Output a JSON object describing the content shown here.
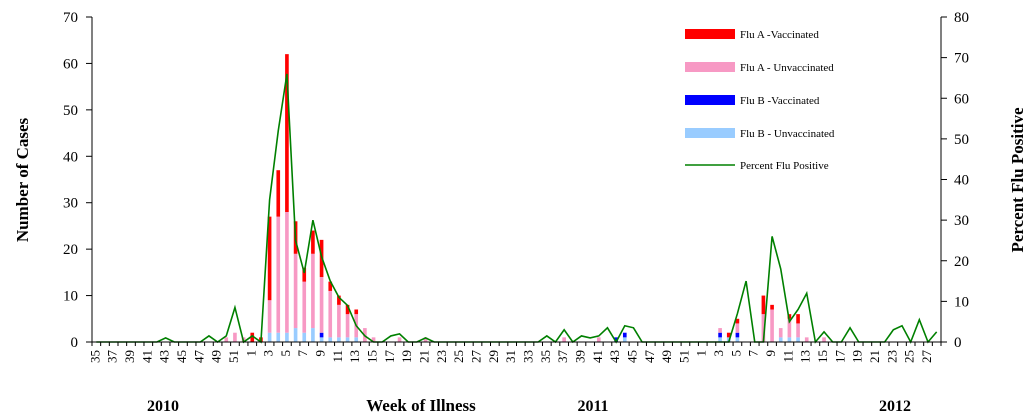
{
  "chart_data": {
    "type": "bar",
    "ylabel": "Number of Cases",
    "y2label": "Percent Flu Positive",
    "xlabel": "Week of Illness",
    "ylim": [
      0,
      70
    ],
    "y2lim": [
      0,
      80
    ],
    "yticks": [
      0,
      10,
      20,
      30,
      40,
      50,
      60,
      70
    ],
    "y2ticks": [
      0,
      10,
      20,
      30,
      40,
      50,
      60,
      70,
      80
    ],
    "years": [
      "2010",
      "2011",
      "2012"
    ],
    "weeks": [
      35,
      36,
      37,
      38,
      39,
      40,
      41,
      42,
      43,
      44,
      45,
      46,
      47,
      48,
      49,
      50,
      51,
      52,
      1,
      2,
      3,
      4,
      5,
      6,
      7,
      8,
      9,
      10,
      11,
      12,
      13,
      14,
      15,
      16,
      17,
      18,
      19,
      20,
      21,
      22,
      23,
      24,
      25,
      26,
      27,
      28,
      29,
      30,
      31,
      32,
      33,
      34,
      35,
      36,
      37,
      38,
      39,
      40,
      41,
      42,
      43,
      44,
      45,
      46,
      47,
      48,
      49,
      50,
      51,
      52,
      1,
      2,
      3,
      4,
      5,
      6,
      7,
      8,
      9,
      10,
      11,
      12,
      13,
      14,
      15,
      16,
      17,
      18,
      19,
      20,
      21,
      22,
      23,
      24,
      25,
      26,
      27,
      28
    ],
    "series": [
      {
        "name": "Flu A -Vaccinated",
        "color": "#ff0000",
        "kind": "bar",
        "values": [
          0,
          0,
          0,
          0,
          0,
          0,
          0,
          0,
          0,
          0,
          0,
          0,
          0,
          0,
          0,
          0,
          0,
          0,
          2,
          1,
          18,
          10,
          34,
          7,
          3,
          5,
          8,
          2,
          2,
          2,
          1,
          0,
          0,
          0,
          0,
          0,
          0,
          0,
          0,
          0,
          0,
          0,
          0,
          0,
          0,
          0,
          0,
          0,
          0,
          0,
          0,
          0,
          0,
          0,
          0,
          0,
          0,
          0,
          0,
          0,
          0,
          0,
          0,
          0,
          0,
          0,
          0,
          0,
          0,
          0,
          0,
          0,
          0,
          1,
          1,
          0,
          0,
          4,
          1,
          0,
          1,
          2,
          0,
          0,
          0,
          0,
          0,
          0,
          0,
          0,
          0,
          0,
          0,
          0,
          0,
          0,
          0,
          0
        ]
      },
      {
        "name": "Flu A - Unvaccinated",
        "color": "#f799c4",
        "kind": "bar",
        "values": [
          0,
          0,
          0,
          0,
          0,
          0,
          0,
          0,
          0,
          0,
          0,
          0,
          0,
          0,
          0,
          1,
          2,
          1,
          0,
          0,
          7,
          25,
          26,
          16,
          11,
          16,
          12,
          10,
          7,
          5,
          5,
          3,
          1,
          0,
          0,
          1,
          0,
          0,
          1,
          0,
          0,
          0,
          0,
          0,
          0,
          0,
          0,
          0,
          0,
          0,
          0,
          0,
          0,
          0,
          1,
          0,
          0,
          0,
          1,
          0,
          0,
          0,
          0,
          0,
          0,
          0,
          0,
          0,
          0,
          0,
          0,
          0,
          1,
          0,
          2,
          0,
          0,
          6,
          7,
          2,
          4,
          3,
          1,
          0,
          1,
          0,
          0,
          0,
          0,
          0,
          0,
          0,
          0,
          0,
          0,
          0,
          0,
          0
        ]
      },
      {
        "name": "Flu B -Vaccinated",
        "color": "#0000ff",
        "kind": "bar",
        "values": [
          0,
          0,
          0,
          0,
          0,
          0,
          0,
          0,
          0,
          0,
          0,
          0,
          0,
          0,
          0,
          0,
          0,
          0,
          0,
          0,
          0,
          0,
          0,
          0,
          0,
          0,
          1,
          0,
          0,
          0,
          0,
          0,
          0,
          0,
          0,
          0,
          0,
          0,
          0,
          0,
          0,
          0,
          0,
          0,
          0,
          0,
          0,
          0,
          0,
          0,
          0,
          0,
          0,
          0,
          0,
          0,
          0,
          0,
          0,
          0,
          1,
          1,
          0,
          0,
          0,
          0,
          0,
          0,
          0,
          0,
          0,
          0,
          1,
          0,
          1,
          0,
          0,
          0,
          0,
          0,
          0,
          0,
          0,
          0,
          0,
          0,
          0,
          0,
          0,
          0,
          0,
          0,
          0,
          0,
          0,
          0,
          0,
          0
        ]
      },
      {
        "name": "Flu B - Unvaccinated",
        "color": "#99ccff",
        "kind": "bar",
        "values": [
          0,
          0,
          0,
          0,
          0,
          0,
          0,
          0,
          0,
          0,
          0,
          0,
          0,
          0,
          0,
          0,
          0,
          0,
          0,
          0,
          2,
          2,
          2,
          3,
          2,
          3,
          1,
          1,
          1,
          1,
          1,
          0,
          0,
          0,
          0,
          0,
          0,
          0,
          0,
          0,
          0,
          0,
          0,
          0,
          0,
          0,
          0,
          0,
          0,
          0,
          0,
          0,
          0,
          0,
          0,
          0,
          0,
          0,
          0,
          0,
          0,
          1,
          0,
          0,
          0,
          0,
          0,
          0,
          0,
          0,
          0,
          0,
          1,
          1,
          1,
          0,
          0,
          0,
          0,
          1,
          1,
          1,
          0,
          0,
          0,
          0,
          0,
          0,
          0,
          0,
          0,
          0,
          0,
          0,
          0,
          0,
          0,
          0
        ]
      },
      {
        "name": "Percent Flu Positive",
        "color": "#008000",
        "kind": "line",
        "axis": "right",
        "values": [
          0,
          0,
          0,
          0,
          0,
          0,
          0,
          0,
          1,
          0,
          0,
          0,
          0,
          1.5,
          0,
          1.5,
          8.5,
          0,
          1.5,
          0,
          35,
          52,
          66,
          25,
          17,
          30,
          21,
          15,
          11,
          9,
          4,
          1.5,
          0,
          0,
          1.5,
          2,
          0,
          0,
          1,
          0,
          0,
          0,
          0,
          0,
          0,
          0,
          0,
          0,
          0,
          0,
          0,
          0,
          1.5,
          0,
          3,
          0,
          1.5,
          1,
          1.5,
          3.5,
          0,
          4,
          3.5,
          0,
          0,
          0,
          0,
          0,
          0,
          0,
          0,
          0,
          0,
          0,
          7,
          15,
          0,
          0,
          26,
          18,
          5,
          8,
          12,
          0,
          2.5,
          0,
          0,
          3.5,
          0,
          0,
          0,
          0,
          3,
          4,
          0,
          5.5,
          0,
          2.5
        ]
      }
    ]
  }
}
